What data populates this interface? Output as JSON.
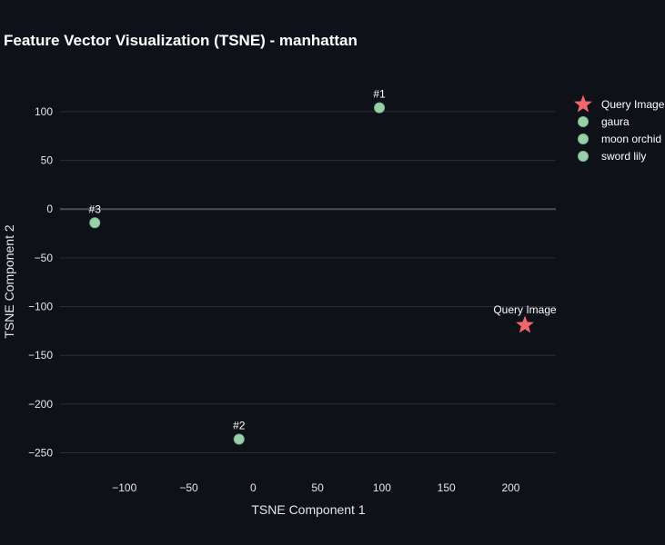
{
  "chart_data": {
    "type": "scatter",
    "title": "Feature Vector Visualization (TSNE) - manhattan",
    "xlabel": "TSNE Component 1",
    "ylabel": "TSNE Component 2",
    "xlim": [
      -150,
      235
    ],
    "ylim": [
      -270,
      140
    ],
    "xticks": [
      -100,
      -50,
      0,
      50,
      100,
      150,
      200
    ],
    "yticks": [
      100,
      50,
      0,
      -50,
      -100,
      -150,
      -200,
      -250
    ],
    "grid": true,
    "legend_position": "top-right",
    "series": [
      {
        "name": "Query Image",
        "marker": "star",
        "color": "#f2666e",
        "points": [
          {
            "x": 211,
            "y": -119,
            "label": "Query Image"
          }
        ]
      },
      {
        "name": "gaura",
        "marker": "circle",
        "color": "#97d1a9",
        "points": [
          {
            "x": 98,
            "y": 104,
            "label": "#1"
          }
        ]
      },
      {
        "name": "moon orchid",
        "marker": "circle",
        "color": "#97d1a9",
        "points": [
          {
            "x": -11,
            "y": -236,
            "label": "#2"
          }
        ]
      },
      {
        "name": "sword lily",
        "marker": "circle",
        "color": "#97d1a9",
        "points": [
          {
            "x": -123,
            "y": -14,
            "label": "#3"
          }
        ]
      }
    ]
  }
}
